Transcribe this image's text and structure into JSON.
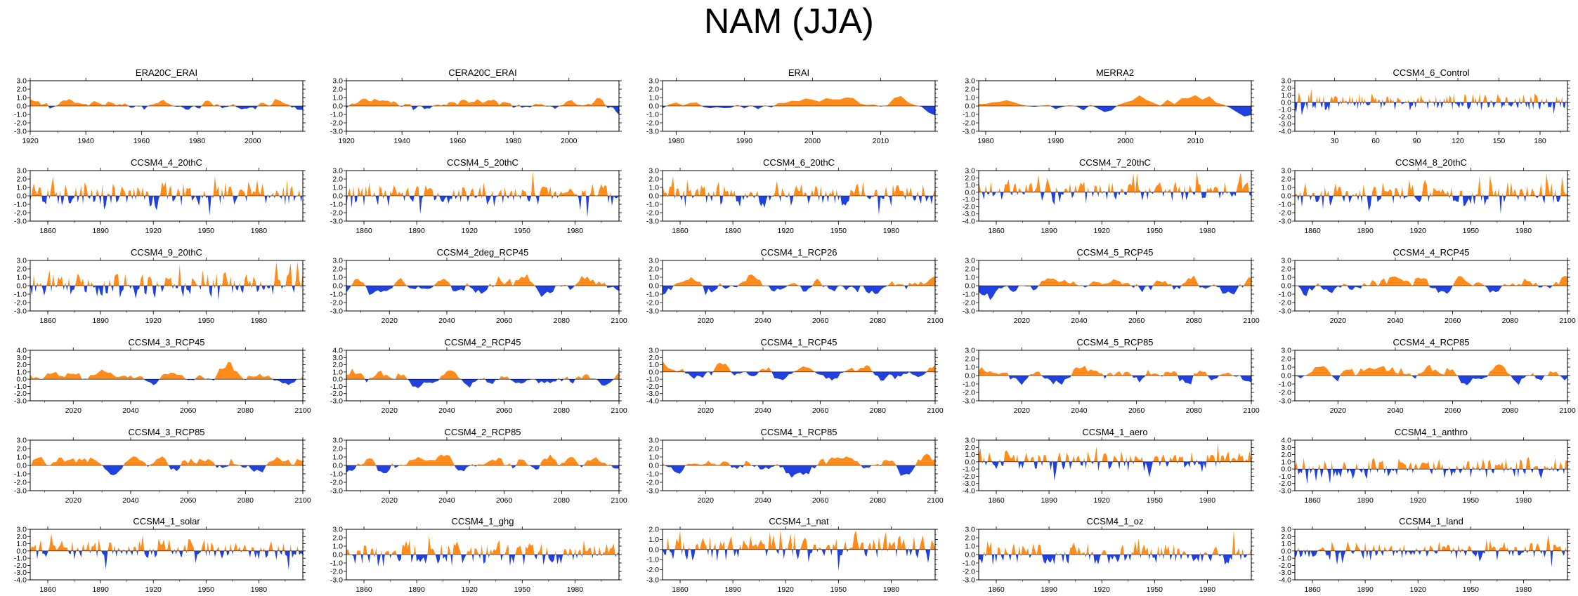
{
  "title": "NAM (JJA)",
  "colors": {
    "positive": "#ff8c1a",
    "negative": "#2040e0",
    "axis": "#000000"
  },
  "chart_data": [
    {
      "type": "area",
      "title": "ERA20C_ERAI",
      "x_range": [
        1920,
        2018
      ],
      "x_ticks": [
        1920,
        1940,
        1960,
        1980,
        2000
      ],
      "ylim": [
        -3,
        3
      ],
      "y_ticks": [
        -3,
        -2,
        -1,
        0,
        1,
        2,
        3
      ],
      "seed": 11,
      "amp": 1.1,
      "smooth": 3,
      "phase": 0
    },
    {
      "type": "area",
      "title": "CERA20C_ERAI",
      "x_range": [
        1920,
        2018
      ],
      "x_ticks": [
        1920,
        1940,
        1960,
        1980,
        2000
      ],
      "ylim": [
        -3,
        3
      ],
      "y_ticks": [
        -3,
        -2,
        -1,
        0,
        1,
        2,
        3
      ],
      "seed": 12,
      "amp": 1.1,
      "smooth": 3,
      "phase": 0
    },
    {
      "type": "area",
      "title": "ERAI",
      "x_range": [
        1978,
        2018
      ],
      "x_ticks": [
        1980,
        1990,
        2000,
        2010
      ],
      "ylim": [
        -3,
        3
      ],
      "y_ticks": [
        -3,
        -2,
        -1,
        0,
        1,
        2,
        3
      ],
      "seed": 13,
      "amp": 1.0,
      "smooth": 2,
      "phase": 0
    },
    {
      "type": "area",
      "title": "MERRA2",
      "x_range": [
        1979,
        2018
      ],
      "x_ticks": [
        1980,
        1990,
        2000,
        2010
      ],
      "ylim": [
        -3,
        3
      ],
      "y_ticks": [
        -3,
        -2,
        -1,
        0,
        1,
        2,
        3
      ],
      "seed": 14,
      "amp": 1.0,
      "smooth": 2,
      "phase": 0
    },
    {
      "type": "area",
      "title": "CCSM4_6_Control",
      "x_range": [
        1,
        200
      ],
      "x_ticks": [
        30,
        60,
        90,
        120,
        150,
        180
      ],
      "ylim": [
        -4,
        3
      ],
      "y_ticks": [
        -4,
        -3,
        -2,
        -1,
        0,
        1,
        2,
        3
      ],
      "seed": 15,
      "amp": 1.0,
      "smooth": 1,
      "phase": 0
    },
    {
      "type": "area",
      "title": "CCSM4_4_20thC",
      "x_range": [
        1850,
        2005
      ],
      "x_ticks": [
        1860,
        1890,
        1920,
        1950,
        1980
      ],
      "ylim": [
        -3,
        3
      ],
      "y_ticks": [
        -3,
        -2,
        -1,
        0,
        1,
        2,
        3
      ],
      "seed": 21,
      "amp": 1.1,
      "smooth": 1,
      "phase": 0
    },
    {
      "type": "area",
      "title": "CCSM4_5_20thC",
      "x_range": [
        1850,
        2005
      ],
      "x_ticks": [
        1860,
        1890,
        1920,
        1950,
        1980
      ],
      "ylim": [
        -3,
        3
      ],
      "y_ticks": [
        -3,
        -2,
        -1,
        0,
        1,
        2,
        3
      ],
      "seed": 22,
      "amp": 1.1,
      "smooth": 1,
      "phase": 0
    },
    {
      "type": "area",
      "title": "CCSM4_6_20thC",
      "x_range": [
        1850,
        2005
      ],
      "x_ticks": [
        1860,
        1890,
        1920,
        1950,
        1980
      ],
      "ylim": [
        -3,
        3
      ],
      "y_ticks": [
        -3,
        -2,
        -1,
        0,
        1,
        2,
        3
      ],
      "seed": 23,
      "amp": 1.1,
      "smooth": 1,
      "phase": 0
    },
    {
      "type": "area",
      "title": "CCSM4_7_20thC",
      "x_range": [
        1850,
        2005
      ],
      "x_ticks": [
        1860,
        1890,
        1920,
        1950,
        1980
      ],
      "ylim": [
        -4,
        3
      ],
      "y_ticks": [
        -4,
        -3,
        -2,
        -1,
        0,
        1,
        2,
        3
      ],
      "seed": 24,
      "amp": 1.1,
      "smooth": 1,
      "phase": 0
    },
    {
      "type": "area",
      "title": "CCSM4_8_20thC",
      "x_range": [
        1850,
        2005
      ],
      "x_ticks": [
        1860,
        1890,
        1920,
        1950,
        1980
      ],
      "ylim": [
        -3,
        3
      ],
      "y_ticks": [
        -3,
        -2,
        -1,
        0,
        1,
        2,
        3
      ],
      "seed": 25,
      "amp": 1.1,
      "smooth": 1,
      "phase": 0
    },
    {
      "type": "area",
      "title": "CCSM4_9_20thC",
      "x_range": [
        1850,
        2005
      ],
      "x_ticks": [
        1860,
        1890,
        1920,
        1950,
        1980
      ],
      "ylim": [
        -3,
        3
      ],
      "y_ticks": [
        -3,
        -2,
        -1,
        0,
        1,
        2,
        3
      ],
      "seed": 31,
      "amp": 1.1,
      "smooth": 1,
      "phase": 0
    },
    {
      "type": "area",
      "title": "CCSM4_2deg_RCP45",
      "x_range": [
        2005,
        2100
      ],
      "x_ticks": [
        2020,
        2040,
        2060,
        2080,
        2100
      ],
      "ylim": [
        -3,
        3
      ],
      "y_ticks": [
        -3,
        -2,
        -1,
        0,
        1,
        2,
        3
      ],
      "seed": 32,
      "amp": 1.1,
      "smooth": 2,
      "phase": 0
    },
    {
      "type": "area",
      "title": "CCSM4_1_RCP26",
      "x_range": [
        2005,
        2100
      ],
      "x_ticks": [
        2020,
        2040,
        2060,
        2080,
        2100
      ],
      "ylim": [
        -3,
        3
      ],
      "y_ticks": [
        -3,
        -2,
        -1,
        0,
        1,
        2,
        3
      ],
      "seed": 33,
      "amp": 1.1,
      "smooth": 2,
      "phase": 0
    },
    {
      "type": "area",
      "title": "CCSM4_5_RCP45",
      "x_range": [
        2005,
        2100
      ],
      "x_ticks": [
        2020,
        2040,
        2060,
        2080,
        2100
      ],
      "ylim": [
        -3,
        3
      ],
      "y_ticks": [
        -3,
        -2,
        -1,
        0,
        1,
        2,
        3
      ],
      "seed": 34,
      "amp": 1.1,
      "smooth": 2,
      "phase": 0
    },
    {
      "type": "area",
      "title": "CCSM4_4_RCP45",
      "x_range": [
        2005,
        2100
      ],
      "x_ticks": [
        2020,
        2040,
        2060,
        2080,
        2100
      ],
      "ylim": [
        -3,
        3
      ],
      "y_ticks": [
        -3,
        -2,
        -1,
        0,
        1,
        2,
        3
      ],
      "seed": 35,
      "amp": 1.1,
      "smooth": 2,
      "phase": 0
    },
    {
      "type": "area",
      "title": "CCSM4_3_RCP45",
      "x_range": [
        2005,
        2100
      ],
      "x_ticks": [
        2020,
        2040,
        2060,
        2080,
        2100
      ],
      "ylim": [
        -3,
        4
      ],
      "y_ticks": [
        -3,
        -2,
        -1,
        0,
        1,
        2,
        3,
        4
      ],
      "seed": 41,
      "amp": 1.1,
      "smooth": 2,
      "phase": 0
    },
    {
      "type": "area",
      "title": "CCSM4_2_RCP45",
      "x_range": [
        2005,
        2100
      ],
      "x_ticks": [
        2020,
        2040,
        2060,
        2080,
        2100
      ],
      "ylim": [
        -3,
        4
      ],
      "y_ticks": [
        -3,
        -2,
        -1,
        0,
        1,
        2,
        3,
        4
      ],
      "seed": 42,
      "amp": 1.1,
      "smooth": 2,
      "phase": 0
    },
    {
      "type": "area",
      "title": "CCSM4_1_RCP45",
      "x_range": [
        2005,
        2100
      ],
      "x_ticks": [
        2020,
        2040,
        2060,
        2080,
        2100
      ],
      "ylim": [
        -4,
        3
      ],
      "y_ticks": [
        -4,
        -3,
        -2,
        -1,
        0,
        1,
        2,
        3
      ],
      "seed": 43,
      "amp": 1.1,
      "smooth": 2,
      "phase": 0
    },
    {
      "type": "area",
      "title": "CCSM4_5_RCP85",
      "x_range": [
        2005,
        2100
      ],
      "x_ticks": [
        2020,
        2040,
        2060,
        2080,
        2100
      ],
      "ylim": [
        -3,
        3
      ],
      "y_ticks": [
        -3,
        -2,
        -1,
        0,
        1,
        2,
        3
      ],
      "seed": 44,
      "amp": 1.1,
      "smooth": 2,
      "phase": 0
    },
    {
      "type": "area",
      "title": "CCSM4_4_RCP85",
      "x_range": [
        2005,
        2100
      ],
      "x_ticks": [
        2020,
        2040,
        2060,
        2080,
        2100
      ],
      "ylim": [
        -3,
        3
      ],
      "y_ticks": [
        -3,
        -2,
        -1,
        0,
        1,
        2,
        3
      ],
      "seed": 45,
      "amp": 1.1,
      "smooth": 2,
      "phase": 0
    },
    {
      "type": "area",
      "title": "CCSM4_3_RCP85",
      "x_range": [
        2005,
        2100
      ],
      "x_ticks": [
        2020,
        2040,
        2060,
        2080,
        2100
      ],
      "ylim": [
        -3,
        3
      ],
      "y_ticks": [
        -3,
        -2,
        -1,
        0,
        1,
        2,
        3
      ],
      "seed": 51,
      "amp": 1.1,
      "smooth": 2,
      "phase": 0
    },
    {
      "type": "area",
      "title": "CCSM4_2_RCP85",
      "x_range": [
        2005,
        2100
      ],
      "x_ticks": [
        2020,
        2040,
        2060,
        2080,
        2100
      ],
      "ylim": [
        -3,
        3
      ],
      "y_ticks": [
        -3,
        -2,
        -1,
        0,
        1,
        2,
        3
      ],
      "seed": 52,
      "amp": 1.1,
      "smooth": 2,
      "phase": 0
    },
    {
      "type": "area",
      "title": "CCSM4_1_RCP85",
      "x_range": [
        2005,
        2100
      ],
      "x_ticks": [
        2020,
        2040,
        2060,
        2080,
        2100
      ],
      "ylim": [
        -3,
        3
      ],
      "y_ticks": [
        -3,
        -2,
        -1,
        0,
        1,
        2,
        3
      ],
      "seed": 53,
      "amp": 1.1,
      "smooth": 2,
      "phase": 0
    },
    {
      "type": "area",
      "title": "CCSM4_1_aero",
      "x_range": [
        1850,
        2005
      ],
      "x_ticks": [
        1860,
        1890,
        1920,
        1950,
        1980
      ],
      "ylim": [
        -4,
        3
      ],
      "y_ticks": [
        -4,
        -3,
        -2,
        -1,
        0,
        1,
        2,
        3
      ],
      "seed": 54,
      "amp": 1.1,
      "smooth": 1,
      "phase": 0
    },
    {
      "type": "area",
      "title": "CCSM4_1_anthro",
      "x_range": [
        1850,
        2005
      ],
      "x_ticks": [
        1860,
        1890,
        1920,
        1950,
        1980
      ],
      "ylim": [
        -3,
        4
      ],
      "y_ticks": [
        -3,
        -2,
        -1,
        0,
        1,
        2,
        3,
        4
      ],
      "seed": 55,
      "amp": 1.1,
      "smooth": 1,
      "phase": 0
    },
    {
      "type": "area",
      "title": "CCSM4_1_solar",
      "x_range": [
        1850,
        2005
      ],
      "x_ticks": [
        1860,
        1890,
        1920,
        1950,
        1980
      ],
      "ylim": [
        -4,
        3
      ],
      "y_ticks": [
        -4,
        -3,
        -2,
        -1,
        0,
        1,
        2,
        3
      ],
      "seed": 61,
      "amp": 1.1,
      "smooth": 1,
      "phase": 0
    },
    {
      "type": "area",
      "title": "CCSM4_1_ghg",
      "x_range": [
        1850,
        2005
      ],
      "x_ticks": [
        1860,
        1890,
        1920,
        1950,
        1980
      ],
      "ylim": [
        -3,
        3
      ],
      "y_ticks": [
        -3,
        -2,
        -1,
        0,
        1,
        2,
        3
      ],
      "seed": 62,
      "amp": 1.1,
      "smooth": 1,
      "phase": 0
    },
    {
      "type": "area",
      "title": "CCSM4_1_nat",
      "x_range": [
        1850,
        2005
      ],
      "x_ticks": [
        1860,
        1890,
        1920,
        1950,
        1980
      ],
      "ylim": [
        -3,
        2
      ],
      "y_ticks": [
        -3,
        -2,
        -1,
        0,
        1,
        2
      ],
      "seed": 63,
      "amp": 1.0,
      "smooth": 1,
      "phase": 0
    },
    {
      "type": "area",
      "title": "CCSM4_1_oz",
      "x_range": [
        1850,
        2005
      ],
      "x_ticks": [
        1860,
        1890,
        1920,
        1950,
        1980
      ],
      "ylim": [
        -3,
        3
      ],
      "y_ticks": [
        -3,
        -2,
        -1,
        0,
        1,
        2,
        3
      ],
      "seed": 64,
      "amp": 1.1,
      "smooth": 1,
      "phase": 0
    },
    {
      "type": "area",
      "title": "CCSM4_1_land",
      "x_range": [
        1850,
        2005
      ],
      "x_ticks": [
        1860,
        1890,
        1920,
        1950,
        1980
      ],
      "ylim": [
        -4,
        3
      ],
      "y_ticks": [
        -4,
        -3,
        -2,
        -1,
        0,
        1,
        2,
        3
      ],
      "seed": 65,
      "amp": 1.0,
      "smooth": 1,
      "phase": 0
    }
  ]
}
